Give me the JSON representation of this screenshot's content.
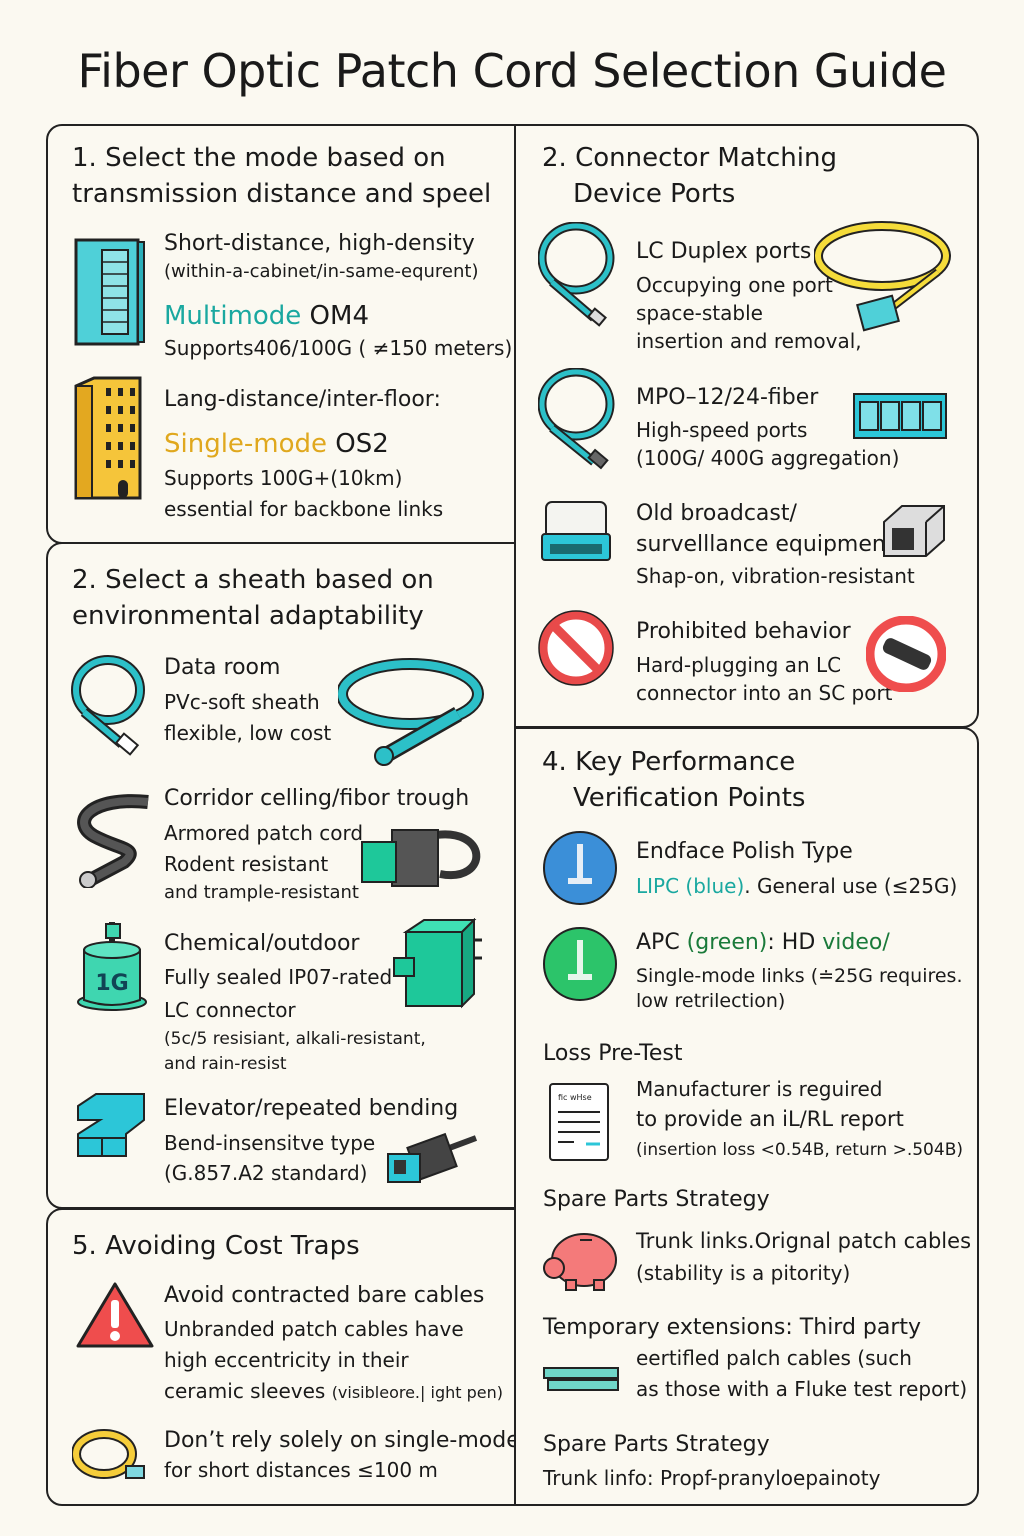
{
  "title": "Fiber Optic Patch Cord Selection Guide",
  "colors": {
    "teal": "#1aa8a0",
    "gold": "#e0a81e",
    "green": "#1a7a3a",
    "red": "#e84a4a",
    "blue": "#3b8fd8",
    "background": "#fbf9f1"
  },
  "s1": {
    "h1": "1. Select the mode based on",
    "h2a": "transmission distance",
    "h2b": " and ",
    "h2c": "speel",
    "a_title": "Short-distance, high-density",
    "a_sub": "(within-a-cabinet/in-same-equrent)",
    "a_mode": "Multimode",
    "a_grade": " OM4",
    "a_body": "Supports406/100G ( ≠150 meters)",
    "b_title": "Lang-distance/inter-floor:",
    "b_mode": "Single-mode",
    "b_grade": " OS2",
    "b_body1": "Supports 100G+(10km)",
    "b_body2": "essential for backbone links",
    "icons": [
      "server-rack-icon",
      "building-icon"
    ]
  },
  "s2": {
    "h1": "2. Select a sheath based on",
    "h2": "environmental adaptability",
    "items": [
      {
        "title": "Data room",
        "lines": [
          "PVc-soft sheath",
          "flexible, low cost"
        ]
      },
      {
        "title": "Corridor celling/fibor trough",
        "lines": [
          "Armored patch cord",
          "Rodent resistant",
          "and trample-resistant"
        ]
      },
      {
        "title": "Chemical/outdoor",
        "lines": [
          "Fully sealed IP07-rated",
          "LC connector",
          "(5c/5 resisiant, alkali-resistant,",
          "and rain-resist"
        ]
      },
      {
        "title": "Elevator/repeated bending",
        "lines": [
          "Bend-insensitve type",
          "(G.857.A2 standard)"
        ]
      }
    ],
    "canister_label": "1G"
  },
  "s3": {
    "h1": "2. Connector Matching",
    "h2": "Device Ports",
    "items": [
      {
        "title": "LC Duplex ports",
        "lines": [
          "Occupying one port",
          "space-stable",
          "insertion and removal,"
        ]
      },
      {
        "title": "MPO–12/24-fiber",
        "lines": [
          "High-speed ports",
          "(100G/ 400G aggregation)"
        ]
      },
      {
        "title": "Old broadcast/",
        "title2": "survelllance equipment",
        "lines": [
          "Shap-on, vibration-resistant"
        ]
      },
      {
        "title": "Prohibited behavior",
        "lines": [
          "Hard-plugging an LC",
          "connector into an SC port"
        ]
      }
    ]
  },
  "s4": {
    "h1": "4. Key Performance",
    "h2": "Verification Points",
    "polish_title": "Endface Polish Type",
    "upc_a": "LIPC",
    "upc_b": " (blue)",
    "upc_c": ". General use (≤25G)",
    "apc_a": "APC ",
    "apc_b": "(green)",
    "apc_c": ": HD ",
    "apc_d": "video/",
    "apc_l1": "Single-mode links (≐25G requires.",
    "apc_l2": "low retrilection)",
    "loss_title": "Loss Pre-Test",
    "doc_label": "fic wHse",
    "loss_l1": "Manufacturer is reguired",
    "loss_l2": "to provide an iL/RL report",
    "loss_l3": "(insertion loss <0.54B, return >.504B)",
    "spare_title": "Spare Parts Strategy",
    "spare_l1a": "Trunk",
    "spare_l1b": " links.Orignal patch cables",
    "spare_l2": "(stability is a pitority)",
    "temp_a": "Temporary extensions:",
    "temp_b": " Third party",
    "temp_l2": "eertifled palch cables (such",
    "temp_l3": "as those with a Fluke test report)",
    "spare2_title": "Spare Parts Strategy",
    "spare2_line": "Trunk linfo:  Propf-pranyloepainoty"
  },
  "s5": {
    "h": "5. Avoiding Cost Traps",
    "a_title": "Avoid contracted bare cables",
    "a_lines": [
      "Unbranded patch cables have",
      "high eccentricity in their",
      "ceramic sleeves "
    ],
    "a_small": "(visibleore.| ight pen)",
    "b_title": "Don’t rely solely on single-mode",
    "b_line": "for short distances ≤100 m"
  }
}
